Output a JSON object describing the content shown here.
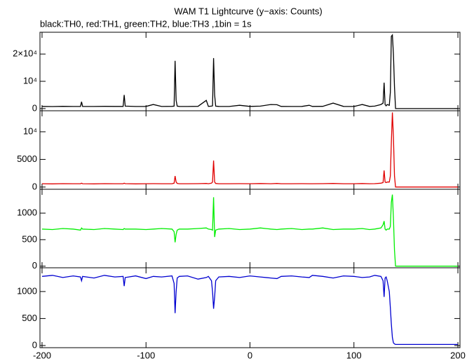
{
  "chart_data": [
    {
      "type": "line",
      "title": "WAM T1 Lightcurve (y−axis: Counts)",
      "subtitle": "black:TH0, red:TH1, green:TH2, blue:TH3 ,1bin = 1s",
      "x": [
        -200,
        -190,
        -180,
        -170,
        -163,
        -162,
        -161,
        -150,
        -140,
        -130,
        -122,
        -121,
        -120,
        -110,
        -100,
        -93,
        -85,
        -75,
        -73,
        -72,
        -71,
        -70,
        -68,
        -60,
        -50,
        -42,
        -40,
        -37,
        -36,
        -35,
        -34,
        -33,
        -30,
        -20,
        -10,
        0,
        10,
        20,
        26,
        30,
        40,
        50,
        57,
        60,
        70,
        80,
        90,
        100,
        108,
        115,
        120,
        126,
        128,
        129,
        130,
        131,
        132,
        134,
        135,
        136,
        137,
        138,
        139,
        140,
        142,
        145,
        150,
        160,
        170,
        180,
        190,
        200
      ],
      "values": [
        800,
        750,
        820,
        780,
        800,
        2500,
        800,
        760,
        820,
        790,
        800,
        5000,
        900,
        780,
        800,
        1500,
        760,
        820,
        900,
        17500,
        3000,
        900,
        800,
        780,
        820,
        3000,
        800,
        900,
        1000,
        18500,
        5000,
        900,
        800,
        780,
        1200,
        800,
        900,
        1500,
        1400,
        800,
        760,
        800,
        1200,
        800,
        820,
        2000,
        800,
        780,
        1500,
        800,
        900,
        1500,
        2000,
        9500,
        1500,
        1000,
        1500,
        1200,
        6000,
        26500,
        27000,
        20000,
        8000,
        0,
        0,
        0,
        0,
        0,
        0,
        0,
        0,
        0
      ],
      "color": "#000000",
      "xlim": [
        -202,
        202
      ],
      "ylim": [
        -800,
        28000
      ],
      "yticks": [
        0,
        {
          "value": 10000,
          "label": "10⁴"
        },
        {
          "value": 20000,
          "label": "2×10⁴"
        }
      ]
    },
    {
      "type": "line",
      "x": [
        -200,
        -190,
        -180,
        -170,
        -163,
        -162,
        -161,
        -150,
        -140,
        -130,
        -122,
        -121,
        -120,
        -110,
        -100,
        -93,
        -85,
        -75,
        -73,
        -72,
        -71,
        -70,
        -68,
        -60,
        -50,
        -42,
        -40,
        -37,
        -36,
        -35,
        -34,
        -33,
        -30,
        -20,
        -10,
        0,
        10,
        20,
        26,
        30,
        40,
        50,
        57,
        60,
        70,
        80,
        90,
        100,
        108,
        115,
        120,
        126,
        128,
        129,
        130,
        131,
        132,
        134,
        135,
        136,
        137,
        138,
        139,
        140,
        142,
        145,
        150,
        160,
        170,
        180,
        190,
        200
      ],
      "values": [
        600,
        580,
        620,
        600,
        600,
        700,
        600,
        580,
        620,
        600,
        600,
        700,
        620,
        580,
        600,
        620,
        600,
        600,
        700,
        2000,
        900,
        650,
        600,
        600,
        620,
        650,
        600,
        700,
        900,
        4800,
        900,
        650,
        600,
        600,
        620,
        600,
        640,
        600,
        650,
        600,
        600,
        620,
        600,
        600,
        620,
        650,
        600,
        600,
        640,
        600,
        620,
        700,
        800,
        3000,
        900,
        800,
        900,
        900,
        2000,
        8000,
        13500,
        9000,
        2000,
        0,
        0,
        0,
        0,
        0,
        0,
        0,
        0,
        0
      ],
      "color": "#e00000",
      "xlim": [
        -202,
        202
      ],
      "ylim": [
        -400,
        13800
      ],
      "yticks": [
        0,
        5000,
        {
          "value": 10000,
          "label": "10⁴"
        }
      ]
    },
    {
      "type": "line",
      "x": [
        -200,
        -190,
        -180,
        -170,
        -163,
        -162,
        -161,
        -150,
        -140,
        -130,
        -122,
        -121,
        -120,
        -110,
        -100,
        -93,
        -85,
        -75,
        -73,
        -72,
        -71,
        -70,
        -68,
        -60,
        -50,
        -42,
        -40,
        -37,
        -36,
        -35,
        -34,
        -33,
        -30,
        -20,
        -10,
        0,
        10,
        20,
        26,
        30,
        40,
        50,
        57,
        60,
        70,
        80,
        90,
        100,
        108,
        115,
        120,
        126,
        128,
        129,
        130,
        131,
        132,
        134,
        135,
        136,
        137,
        138,
        139,
        140,
        142,
        145,
        150,
        160,
        170,
        180,
        190,
        200
      ],
      "values": [
        700,
        690,
        710,
        700,
        680,
        720,
        700,
        690,
        710,
        700,
        690,
        710,
        700,
        700,
        690,
        700,
        710,
        700,
        650,
        450,
        600,
        680,
        700,
        700,
        710,
        720,
        700,
        690,
        680,
        1300,
        550,
        680,
        700,
        710,
        690,
        700,
        720,
        700,
        690,
        700,
        710,
        690,
        700,
        700,
        720,
        690,
        700,
        700,
        710,
        690,
        700,
        720,
        780,
        850,
        700,
        680,
        700,
        700,
        750,
        1200,
        1350,
        900,
        300,
        0,
        0,
        0,
        0,
        0,
        0,
        0,
        0,
        0
      ],
      "color": "#00ee00",
      "xlim": [
        -202,
        202
      ],
      "ylim": [
        -30,
        1450
      ],
      "yticks": [
        0,
        500,
        1000
      ]
    },
    {
      "type": "line",
      "x": [
        -200,
        -190,
        -180,
        -170,
        -163,
        -162,
        -161,
        -150,
        -140,
        -130,
        -122,
        -121,
        -120,
        -110,
        -100,
        -93,
        -85,
        -75,
        -73,
        -72,
        -71,
        -70,
        -68,
        -60,
        -50,
        -42,
        -40,
        -37,
        -36,
        -35,
        -34,
        -33,
        -30,
        -20,
        -10,
        0,
        10,
        20,
        26,
        30,
        40,
        50,
        57,
        60,
        70,
        80,
        90,
        100,
        108,
        115,
        120,
        126,
        128,
        129,
        130,
        131,
        132,
        134,
        135,
        136,
        137,
        138,
        139,
        140,
        142,
        145,
        150,
        160,
        170,
        180,
        190,
        200
      ],
      "values": [
        1280,
        1300,
        1260,
        1290,
        1270,
        1200,
        1280,
        1250,
        1300,
        1270,
        1280,
        1100,
        1260,
        1290,
        1240,
        1280,
        1270,
        1290,
        1150,
        600,
        1000,
        1250,
        1280,
        1290,
        1230,
        1260,
        1280,
        1200,
        1000,
        680,
        900,
        1200,
        1270,
        1280,
        1260,
        1290,
        1270,
        1250,
        1240,
        1280,
        1290,
        1270,
        1260,
        1300,
        1280,
        1250,
        1290,
        1280,
        1260,
        1270,
        1300,
        1280,
        1200,
        900,
        1250,
        1270,
        1200,
        1000,
        700,
        400,
        150,
        50,
        30,
        20,
        20,
        20,
        20,
        20,
        20,
        20,
        20,
        20
      ],
      "color": "#0000d0",
      "xlim": [
        -202,
        202
      ],
      "ylim": [
        -40,
        1440
      ],
      "yticks": [
        0,
        500,
        1000
      ],
      "xticks": [
        -200,
        -100,
        0,
        100,
        200
      ]
    }
  ]
}
